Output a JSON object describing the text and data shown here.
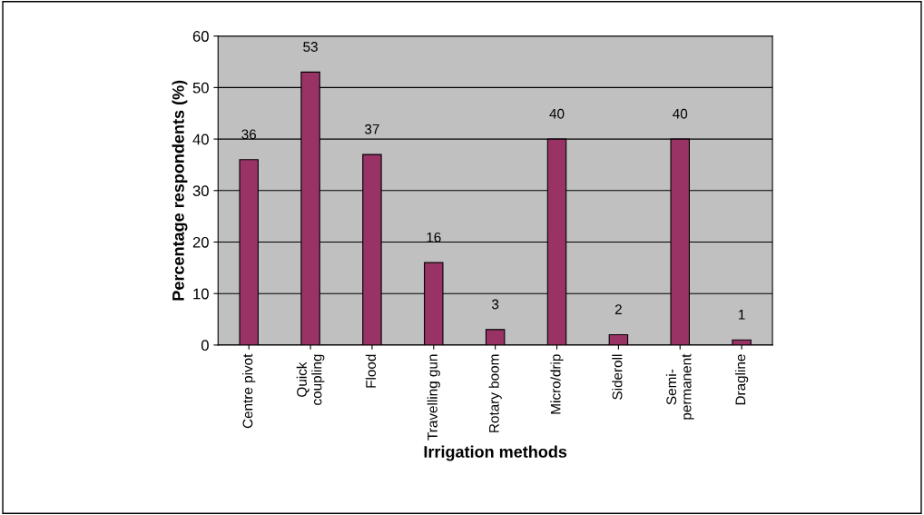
{
  "chart_data": {
    "type": "bar",
    "xlabel": "Irrigation methods",
    "ylabel": "Percentage respondents (%)",
    "categories": [
      "Centre pivot",
      "Quick\ncoupling",
      "Flood",
      "Travelling gun",
      "Rotary boom",
      "Micro/drip",
      "Sideroll",
      "Semi-\npermanent",
      "Dragline"
    ],
    "values": [
      36,
      53,
      37,
      16,
      3,
      40,
      2,
      40,
      1
    ],
    "color": "#993366",
    "ylim": [
      0,
      60
    ],
    "yticks": [
      0,
      10,
      20,
      30,
      40,
      50,
      60
    ],
    "grid": "y",
    "data_labels": true
  }
}
